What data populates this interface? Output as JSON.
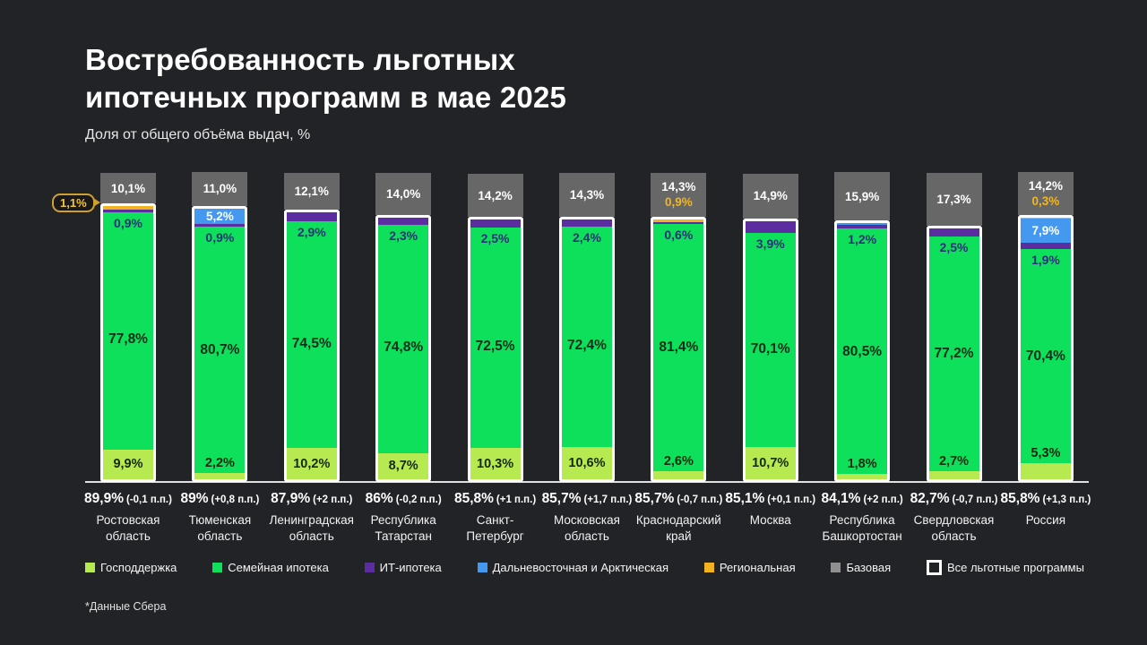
{
  "header": {
    "title_lines": [
      "Востребованность льготных",
      "ипотечных программ в мае 2025"
    ],
    "subtitle": "Доля от общего объёма выдач, %"
  },
  "footnote": "*Данные Сбера",
  "colors": {
    "background": "#222326",
    "gov": "#b7ea51",
    "family": "#0ee05b",
    "it": "#5c2da0",
    "far_east": "#4498f0",
    "regional": "#f1b31f",
    "base": "#676767",
    "base_legend": "#909090",
    "frame": "#ffffff",
    "callout_border": "#cfa02e",
    "callout_text": "#f3c63f"
  },
  "legend": {
    "items": [
      {
        "label": "Господдержка",
        "type": "gov"
      },
      {
        "label": "Семейная ипотека",
        "type": "family"
      },
      {
        "label": "ИТ-ипотека",
        "type": "it"
      },
      {
        "label": "Дальневосточная и Арктическая",
        "type": "far_east"
      },
      {
        "label": "Региональная",
        "type": "regional"
      },
      {
        "label": "Базовая",
        "type": "base_legend"
      },
      {
        "label": "Все льготные программы",
        "type": "all"
      }
    ]
  },
  "chart_data": {
    "type": "bar",
    "stacked": true,
    "unit": "%",
    "ylim": [
      0,
      100
    ],
    "title": "Востребованность льготных ипотечных программ в мае 2025",
    "subtitle": "Доля от общего объёма выдач, %",
    "segment_order_top_to_bottom": [
      "base",
      "regional",
      "far_east",
      "it",
      "family",
      "gov"
    ],
    "categories": [
      "Ростовская область",
      "Тюменская область",
      "Ленинградская область",
      "Республика Татарстан",
      "Санкт-Петербург",
      "Московская область",
      "Краснодарский край",
      "Москва",
      "Республика Башкортостан",
      "Свердловская область",
      "Россия"
    ],
    "regions": [
      {
        "name_lines": [
          "Ростовская",
          "область"
        ],
        "total": "89,9%",
        "change": "(-0,1 п.п.)",
        "base": {
          "v": 10.1,
          "label": "10,1%"
        },
        "regional": {
          "v": 1.1,
          "label": "1,1%",
          "style": "callout"
        },
        "it": {
          "v": 0.9,
          "label": "0,9%"
        },
        "family": {
          "v": 77.8,
          "label": "77,8%"
        },
        "gov": {
          "v": 9.9,
          "label": "9,9%"
        }
      },
      {
        "name_lines": [
          "Тюменская",
          "область"
        ],
        "total": "89%",
        "change": "(+0,8 п.п.)",
        "base": {
          "v": 11.0,
          "label": "11,0%"
        },
        "far_east": {
          "v": 5.2,
          "label": "5,2%"
        },
        "it": {
          "v": 0.9,
          "label": "0,9%"
        },
        "family": {
          "v": 80.7,
          "label": "80,7%"
        },
        "gov": {
          "v": 2.2,
          "label": "2,2%"
        }
      },
      {
        "name_lines": [
          "Ленинградская",
          "область"
        ],
        "total": "87,9%",
        "change": "(+2 п.п.)",
        "base": {
          "v": 12.1,
          "label": "12,1%"
        },
        "it": {
          "v": 2.9,
          "label": "2,9%"
        },
        "family": {
          "v": 74.5,
          "label": "74,5%"
        },
        "gov": {
          "v": 10.2,
          "label": "10,2%"
        }
      },
      {
        "name_lines": [
          "Республика",
          "Татарстан"
        ],
        "total": "86%",
        "change": "(-0,2 п.п.)",
        "base": {
          "v": 14.0,
          "label": "14,0%"
        },
        "it": {
          "v": 2.3,
          "label": "2,3%"
        },
        "family": {
          "v": 74.8,
          "label": "74,8%"
        },
        "gov": {
          "v": 8.7,
          "label": "8,7%"
        }
      },
      {
        "name_lines": [
          "Санкт-Петербург"
        ],
        "total": "85,8%",
        "change": "(+1 п.п.)",
        "base": {
          "v": 14.2,
          "label": "14,2%"
        },
        "it": {
          "v": 2.5,
          "label": "2,5%"
        },
        "family": {
          "v": 72.5,
          "label": "72,5%"
        },
        "gov": {
          "v": 10.3,
          "label": "10,3%"
        }
      },
      {
        "name_lines": [
          "Московская",
          "область"
        ],
        "total": "85,7%",
        "change": "(+1,7 п.п.)",
        "base": {
          "v": 14.3,
          "label": "14,3%"
        },
        "it": {
          "v": 2.4,
          "label": "2,4%"
        },
        "family": {
          "v": 72.4,
          "label": "72,4%"
        },
        "gov": {
          "v": 10.6,
          "label": "10,6%"
        }
      },
      {
        "name_lines": [
          "Краснодарский",
          "край"
        ],
        "total": "85,7%",
        "change": "(-0,7 п.п.)",
        "base": {
          "v": 14.3,
          "label": "14,3%"
        },
        "regional": {
          "v": 0.9,
          "label": "0,9%",
          "style": "in_base"
        },
        "it": {
          "v": 0.6,
          "label": "0,6%"
        },
        "family": {
          "v": 81.4,
          "label": "81,4%"
        },
        "gov": {
          "v": 2.6,
          "label": "2,6%"
        }
      },
      {
        "name_lines": [
          "Москва"
        ],
        "total": "85,1%",
        "change": "(+0,1 п.п.)",
        "base": {
          "v": 14.9,
          "label": "14,9%"
        },
        "it": {
          "v": 3.9,
          "label": "3,9%"
        },
        "family": {
          "v": 70.1,
          "label": "70,1%"
        },
        "gov": {
          "v": 10.7,
          "label": "10,7%"
        }
      },
      {
        "name_lines": [
          "Республика",
          "Башкортостан"
        ],
        "total": "84,1%",
        "change": "(+2 п.п.)",
        "base": {
          "v": 15.9,
          "label": "15,9%"
        },
        "far_east": {
          "v": 0.6,
          "label": null
        },
        "it": {
          "v": 1.2,
          "label": "1,2%"
        },
        "family": {
          "v": 80.5,
          "label": "80,5%"
        },
        "gov": {
          "v": 1.8,
          "label": "1,8%"
        }
      },
      {
        "name_lines": [
          "Свердловская",
          "область"
        ],
        "total": "82,7%",
        "change": "(-0,7 п.п.)",
        "base": {
          "v": 17.3,
          "label": "17,3%"
        },
        "it": {
          "v": 2.5,
          "label": "2,5%"
        },
        "family": {
          "v": 77.2,
          "label": "77,2%"
        },
        "gov": {
          "v": 2.7,
          "label": "2,7%"
        }
      },
      {
        "name_lines": [
          "Россия"
        ],
        "total": "85,8%",
        "change": "(+1,3 п.п.)",
        "base": {
          "v": 14.2,
          "label": "14,2%"
        },
        "regional": {
          "v": 0.3,
          "label": "0,3%",
          "style": "in_base"
        },
        "far_east": {
          "v": 7.9,
          "label": "7,9%"
        },
        "it": {
          "v": 1.9,
          "label": "1,9%"
        },
        "family": {
          "v": 70.4,
          "label": "70,4%"
        },
        "gov": {
          "v": 5.3,
          "label": "5,3%"
        }
      }
    ]
  }
}
